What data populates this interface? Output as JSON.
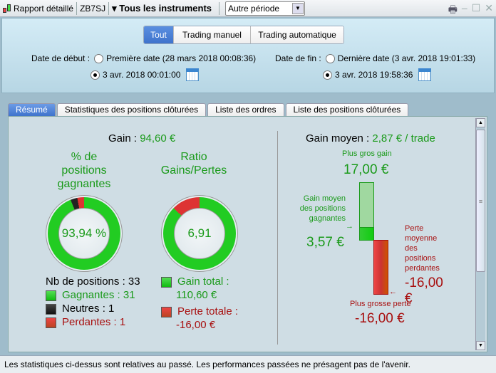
{
  "titlebar": {
    "report": "Rapport détaillé",
    "account": "ZB7SJ",
    "instruments": "▾ Tous les instruments",
    "period": "Autre période"
  },
  "filter": {
    "modes": [
      "Tout",
      "Trading manuel",
      "Trading automatique"
    ],
    "active": "Tout",
    "start_label": "Date de début :",
    "start_first": "Première date (28 mars 2018 00:08:36)",
    "start_custom": "3 avr. 2018 00:01:00",
    "end_label": "Date de fin :",
    "end_last": "Dernière date (3 avr. 2018 19:01:33)",
    "end_custom": "3 avr. 2018 19:58:36"
  },
  "tabs": [
    "Résumé",
    "Statistiques des positions clôturées",
    "Liste des ordres",
    "Liste des positions clôturées"
  ],
  "summary": {
    "gain_label": "Gain :",
    "gain_value": "94,60 €",
    "win_title": "% de positions gagnantes",
    "win_pct": "93,94 %",
    "ratio_title": "Ratio Gains/Pertes",
    "ratio_value": "6,91",
    "positions_label": "Nb de positions : 33",
    "winners": "Gagnantes : 31",
    "neutral": "Neutres : 1",
    "losers": "Perdantes : 1",
    "counts": {
      "win": 31,
      "neutral": 1,
      "loss": 1
    },
    "total_gain_label": "Gain total :",
    "total_gain": "110,60 €",
    "total_loss_label": "Perte totale :",
    "total_loss": "-16,00 €",
    "avg_label": "Gain moyen :",
    "avg_value": "2,87 € / trade",
    "max_gain_label": "Plus gros gain",
    "max_gain": "17,00 €",
    "avg_win_label": "Gain moyen des positions gagnantes",
    "avg_win": "3,57 €",
    "avg_loss_label": "Perte moyenne des positions perdantes",
    "avg_loss": "-16,00 €",
    "max_loss_label": "Plus grosse perte",
    "max_loss": "-16,00 €"
  },
  "colors": {
    "gain": "#1a9a1a",
    "loss": "#a81010",
    "accent": "#3f73cc"
  },
  "footer": "Les statistiques ci-dessus sont relatives au passé. Les performances passées ne présagent pas de l'avenir."
}
